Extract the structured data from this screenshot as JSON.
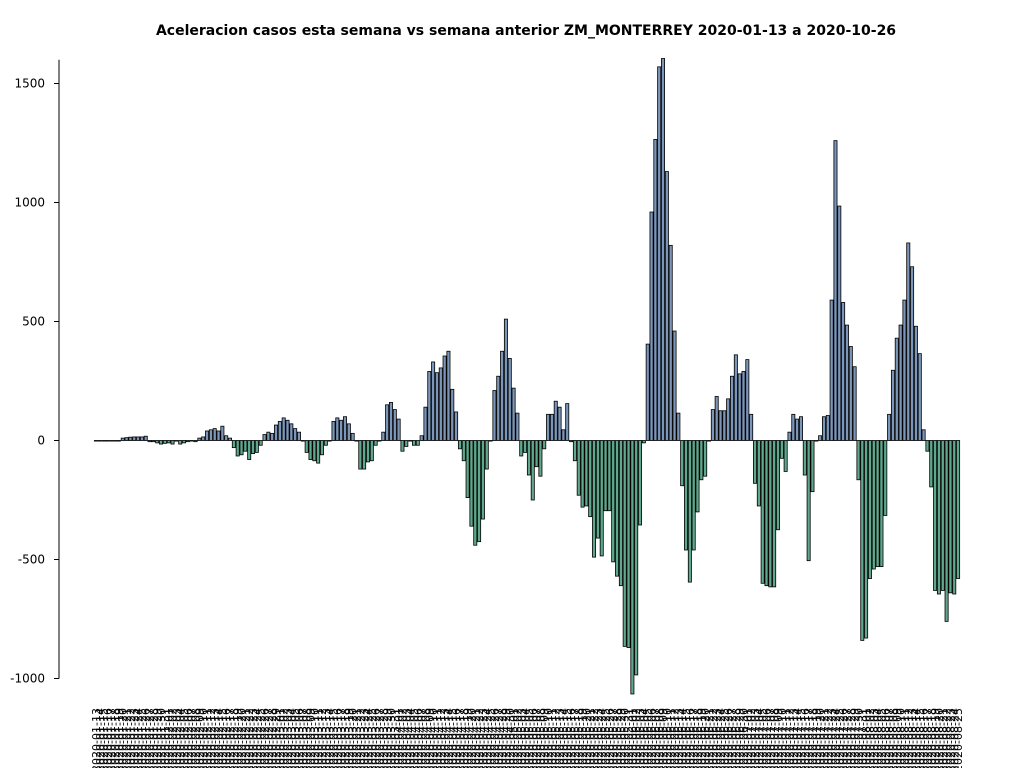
{
  "chart_data": {
    "type": "bar",
    "title": "Aceleracion casos esta semana vs semana anterior ZM_MONTERREY 2020-01-13 a 2020-10-26",
    "xlabel": "",
    "ylabel": "",
    "ylim": [
      -1000,
      1600
    ],
    "yticks": [
      -1000,
      -500,
      0,
      500,
      1000,
      1500
    ],
    "grid": false,
    "legend": "none",
    "colors": {
      "positive": "#7b96b9",
      "negative": "#5fa88e"
    },
    "start_date": "2020-01-13",
    "end_date": "2020-10-26",
    "values": [
      0,
      0,
      0,
      0,
      0,
      0,
      0,
      10,
      12,
      14,
      15,
      15,
      15,
      18,
      -5,
      -5,
      -10,
      -15,
      -12,
      -10,
      -15,
      0,
      -15,
      -10,
      -5,
      0,
      -5,
      10,
      15,
      40,
      45,
      50,
      40,
      60,
      20,
      10,
      -30,
      -65,
      -60,
      -45,
      -80,
      -55,
      -50,
      -20,
      25,
      35,
      30,
      65,
      80,
      95,
      85,
      70,
      50,
      35,
      0,
      -50,
      -80,
      -85,
      -95,
      -60,
      -20,
      0,
      80,
      95,
      85,
      100,
      70,
      30,
      0,
      -120,
      -120,
      -90,
      -85,
      -20,
      0,
      35,
      150,
      160,
      130,
      90,
      -45,
      -25,
      0,
      -20,
      -20,
      20,
      140,
      290,
      330,
      285,
      305,
      355,
      375,
      215,
      120,
      -35,
      -85,
      -240,
      -360,
      -440,
      -425,
      -330,
      -120,
      0,
      210,
      270,
      375,
      510,
      345,
      220,
      115,
      -65,
      -50,
      -145,
      -250,
      -110,
      -150,
      -35,
      110,
      110,
      165,
      140,
      45,
      155,
      -5,
      -85,
      -230,
      -280,
      -275,
      -320,
      -490,
      -410,
      -485,
      -295,
      -295,
      -510,
      -570,
      -610,
      -865,
      -870,
      -1065,
      -985,
      -355,
      -10,
      405,
      960,
      1265,
      1570,
      1605,
      1130,
      820,
      460,
      115,
      -190,
      -460,
      -595,
      -460,
      -300,
      -165,
      -150,
      0,
      130,
      185,
      125,
      125,
      175,
      270,
      360,
      280,
      290,
      340,
      110,
      -180,
      -275,
      -600,
      -610,
      -615,
      -615,
      -375,
      -75,
      -130,
      35,
      110,
      90,
      100,
      -145,
      -505,
      -215,
      0,
      20,
      100,
      105,
      590,
      1260,
      985,
      580,
      485,
      395,
      310,
      -165,
      -840,
      -830,
      -580,
      -540,
      -530,
      -530,
      -315,
      110,
      295,
      430,
      485,
      590,
      830,
      730,
      480,
      365,
      45,
      -45,
      -195,
      -630,
      -645,
      -630,
      -760,
      -640,
      -645,
      -580
    ]
  }
}
